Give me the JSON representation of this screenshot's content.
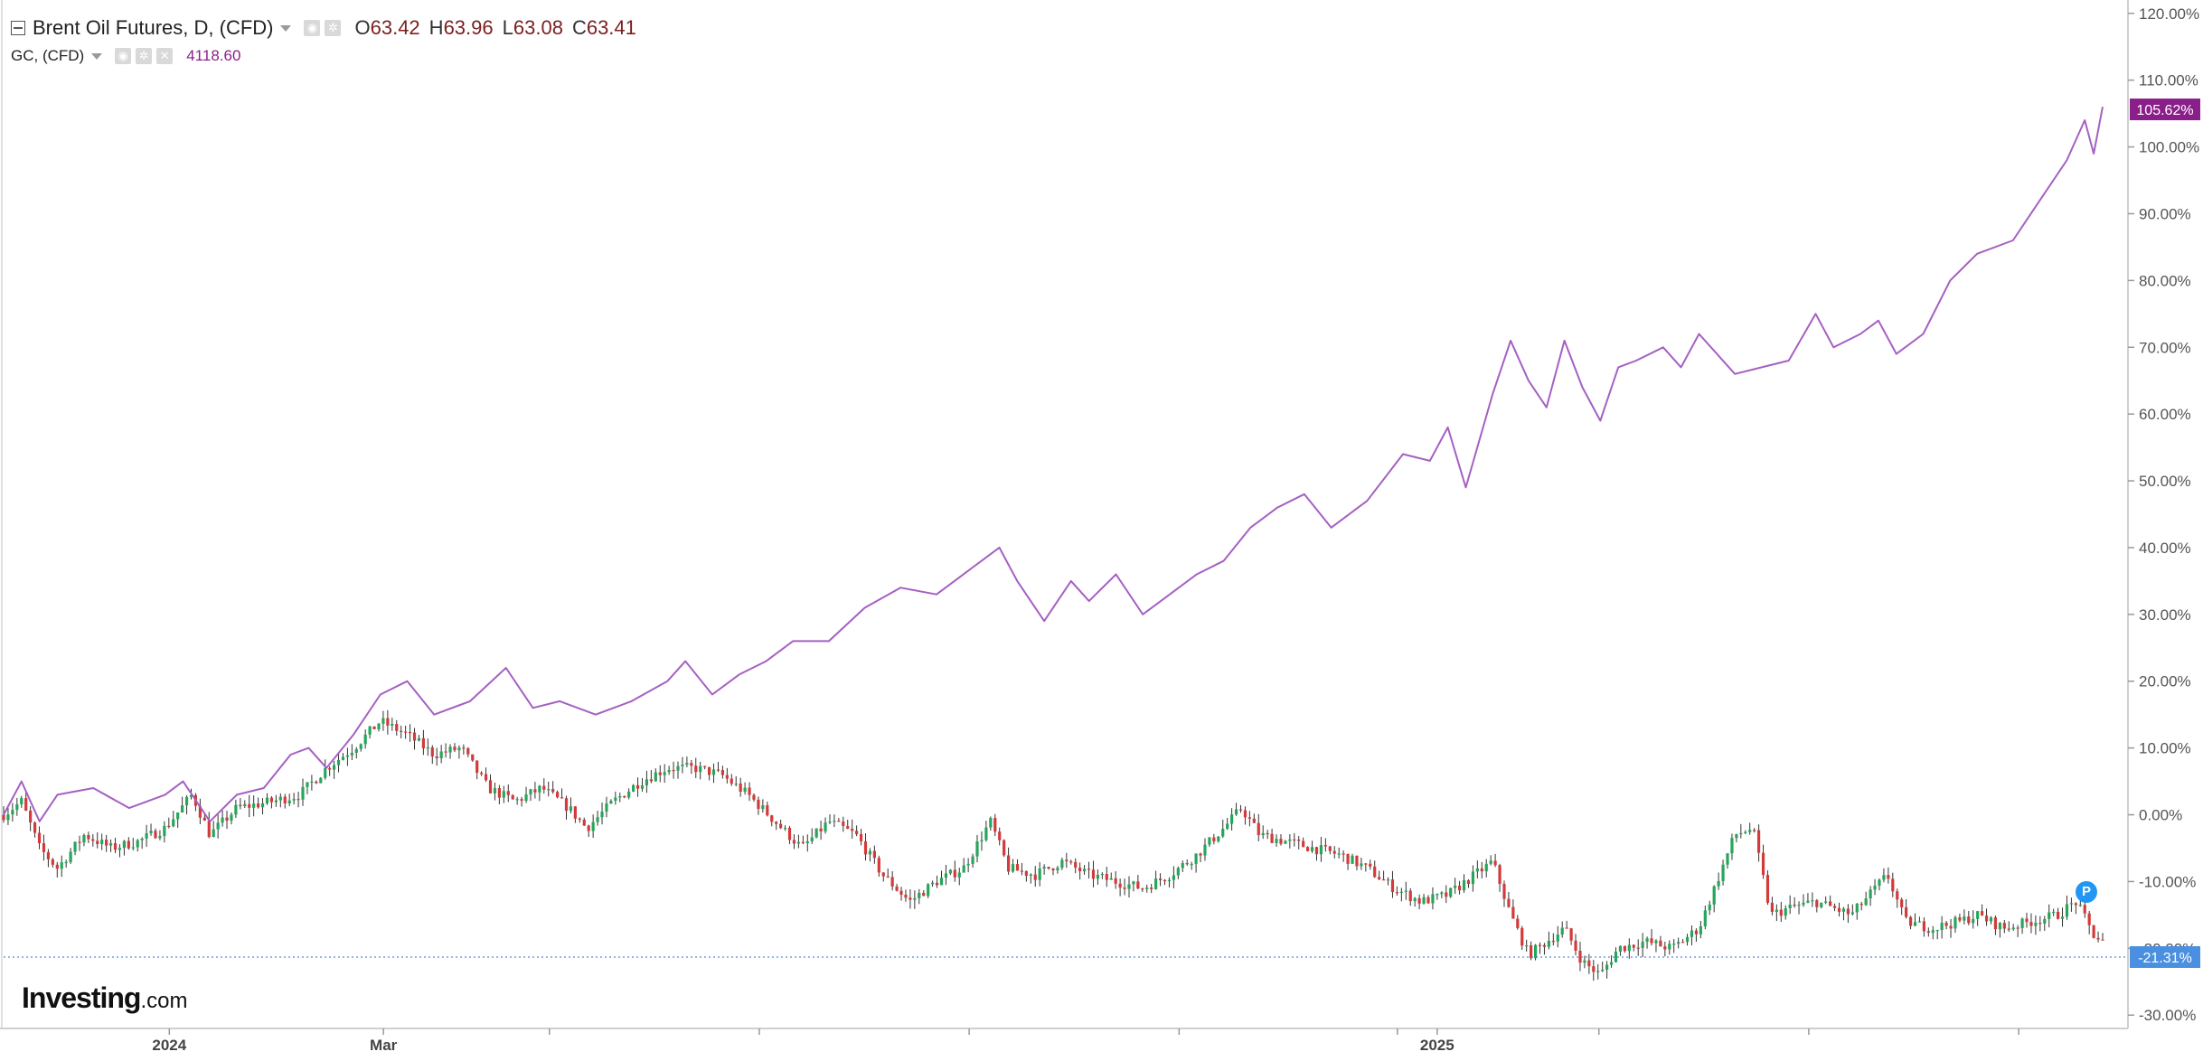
{
  "legend": {
    "main_label": "Brent Oil Futures, D, (CFD)",
    "ohlc": [
      {
        "key": "O",
        "value": "63.42"
      },
      {
        "key": "H",
        "value": "63.96"
      },
      {
        "key": "L",
        "value": "63.08"
      },
      {
        "key": "C",
        "value": "63.41"
      }
    ],
    "compare_label": "GC, (CFD)",
    "compare_value": "4118.60"
  },
  "brand": {
    "name": "Investing",
    "suffix": ".com"
  },
  "badge_letter": "P",
  "colors": {
    "compare_line": "#a560c2",
    "up_candle": "#26a65b",
    "down_candle": "#d43a3a",
    "compare_tag": "#8a1f8a",
    "last_tag": "#4a8fe0",
    "axis_text": "#555555",
    "grid": "#e6e6e6"
  },
  "chart_data": {
    "type": "line",
    "y_axis": {
      "unit": "%",
      "min": -32,
      "max": 122,
      "ticks": [
        "120.00%",
        "110.00%",
        "100.00%",
        "90.00%",
        "80.00%",
        "70.00%",
        "60.00%",
        "50.00%",
        "40.00%",
        "30.00%",
        "20.00%",
        "10.00%",
        "0.00%",
        "-10.00%",
        "-20.00%",
        "-30.00%"
      ],
      "tick_values": [
        120,
        110,
        100,
        90,
        80,
        70,
        60,
        50,
        40,
        30,
        20,
        10,
        0,
        -10,
        -20,
        -30
      ]
    },
    "x_axis": {
      "labels": [
        {
          "text": "2024",
          "t": 0.06
        },
        {
          "text": "Mar",
          "t": 0.162
        },
        {
          "text": "2025",
          "t": 0.664
        }
      ],
      "tick_marks": [
        0.26,
        0.36,
        0.46,
        0.56,
        0.664,
        0.76,
        0.86,
        0.96
      ]
    },
    "series": [
      {
        "name": "GC, (CFD)",
        "style": "line",
        "points": [
          [
            0.0,
            0
          ],
          [
            0.01,
            5
          ],
          [
            0.02,
            -1
          ],
          [
            0.03,
            3
          ],
          [
            0.05,
            4
          ],
          [
            0.07,
            1
          ],
          [
            0.09,
            3
          ],
          [
            0.1,
            5
          ],
          [
            0.115,
            -1
          ],
          [
            0.13,
            3
          ],
          [
            0.145,
            4
          ],
          [
            0.16,
            9
          ],
          [
            0.17,
            10
          ],
          [
            0.18,
            7
          ],
          [
            0.195,
            12
          ],
          [
            0.21,
            18
          ],
          [
            0.225,
            20
          ],
          [
            0.24,
            15
          ],
          [
            0.26,
            17
          ],
          [
            0.28,
            22
          ],
          [
            0.295,
            16
          ],
          [
            0.31,
            17
          ],
          [
            0.33,
            15
          ],
          [
            0.35,
            17
          ],
          [
            0.37,
            20
          ],
          [
            0.38,
            23
          ],
          [
            0.395,
            18
          ],
          [
            0.41,
            21
          ],
          [
            0.425,
            23
          ],
          [
            0.44,
            26
          ],
          [
            0.46,
            26
          ],
          [
            0.48,
            31
          ],
          [
            0.5,
            34
          ],
          [
            0.52,
            33
          ],
          [
            0.54,
            37
          ],
          [
            0.555,
            40
          ],
          [
            0.565,
            35
          ],
          [
            0.58,
            29
          ],
          [
            0.595,
            35
          ],
          [
            0.605,
            32
          ],
          [
            0.62,
            36
          ],
          [
            0.635,
            30
          ],
          [
            0.65,
            33
          ],
          [
            0.665,
            36
          ],
          [
            0.68,
            38
          ],
          [
            0.695,
            43
          ],
          [
            0.71,
            46
          ],
          [
            0.725,
            48
          ],
          [
            0.74,
            43
          ],
          [
            0.76,
            47
          ],
          [
            0.78,
            54
          ],
          [
            0.795,
            53
          ],
          [
            0.805,
            58
          ],
          [
            0.815,
            49
          ],
          [
            0.83,
            63
          ],
          [
            0.84,
            71
          ],
          [
            0.85,
            65
          ],
          [
            0.86,
            61
          ],
          [
            0.87,
            71
          ],
          [
            0.88,
            64
          ],
          [
            0.89,
            59
          ],
          [
            0.9,
            67
          ],
          [
            0.91,
            68
          ],
          [
            0.925,
            70
          ],
          [
            0.935,
            67
          ],
          [
            0.945,
            72
          ],
          [
            0.955,
            69
          ],
          [
            0.965,
            66
          ],
          [
            0.98,
            67
          ],
          [
            0.995,
            68
          ],
          [
            1.01,
            75
          ],
          [
            1.02,
            70
          ],
          [
            1.035,
            72
          ],
          [
            1.045,
            74
          ],
          [
            1.055,
            69
          ],
          [
            1.07,
            72
          ],
          [
            1.085,
            80
          ],
          [
            1.1,
            84
          ],
          [
            1.12,
            86
          ],
          [
            1.135,
            92
          ],
          [
            1.15,
            98
          ],
          [
            1.16,
            104
          ],
          [
            1.165,
            99
          ],
          [
            1.17,
            106
          ]
        ],
        "last_value_label": "105.62%",
        "last_value": 105.62
      },
      {
        "name": "Brent Oil Futures, D, (CFD)",
        "style": "candlestick",
        "points": [
          [
            0.0,
            0
          ],
          [
            0.01,
            2
          ],
          [
            0.02,
            -5
          ],
          [
            0.03,
            -8
          ],
          [
            0.045,
            -3
          ],
          [
            0.06,
            -5
          ],
          [
            0.075,
            -4
          ],
          [
            0.09,
            -2
          ],
          [
            0.105,
            3
          ],
          [
            0.115,
            -3
          ],
          [
            0.13,
            1
          ],
          [
            0.15,
            2
          ],
          [
            0.165,
            3
          ],
          [
            0.18,
            7
          ],
          [
            0.195,
            10
          ],
          [
            0.21,
            14
          ],
          [
            0.225,
            12
          ],
          [
            0.24,
            9
          ],
          [
            0.255,
            10
          ],
          [
            0.27,
            4
          ],
          [
            0.285,
            2
          ],
          [
            0.3,
            4
          ],
          [
            0.315,
            1
          ],
          [
            0.325,
            -2
          ],
          [
            0.34,
            2
          ],
          [
            0.355,
            5
          ],
          [
            0.37,
            7
          ],
          [
            0.385,
            7
          ],
          [
            0.4,
            6
          ],
          [
            0.415,
            3
          ],
          [
            0.43,
            -1
          ],
          [
            0.445,
            -5
          ],
          [
            0.46,
            -1
          ],
          [
            0.475,
            -3
          ],
          [
            0.49,
            -9
          ],
          [
            0.505,
            -13
          ],
          [
            0.52,
            -10
          ],
          [
            0.535,
            -8
          ],
          [
            0.55,
            -1
          ],
          [
            0.56,
            -8
          ],
          [
            0.575,
            -9
          ],
          [
            0.59,
            -7
          ],
          [
            0.605,
            -9
          ],
          [
            0.62,
            -10
          ],
          [
            0.635,
            -11
          ],
          [
            0.65,
            -9
          ],
          [
            0.665,
            -6
          ],
          [
            0.68,
            -2
          ],
          [
            0.69,
            1
          ],
          [
            0.7,
            -3
          ],
          [
            0.715,
            -4
          ],
          [
            0.73,
            -5
          ],
          [
            0.745,
            -6
          ],
          [
            0.76,
            -8
          ],
          [
            0.775,
            -11
          ],
          [
            0.79,
            -13
          ],
          [
            0.805,
            -12
          ],
          [
            0.82,
            -9
          ],
          [
            0.83,
            -7
          ],
          [
            0.84,
            -15
          ],
          [
            0.85,
            -21
          ],
          [
            0.86,
            -19
          ],
          [
            0.87,
            -17
          ],
          [
            0.88,
            -22
          ],
          [
            0.89,
            -24
          ],
          [
            0.9,
            -20
          ],
          [
            0.915,
            -19
          ],
          [
            0.93,
            -20
          ],
          [
            0.945,
            -17
          ],
          [
            0.955,
            -10
          ],
          [
            0.965,
            -3
          ],
          [
            0.975,
            -2
          ],
          [
            0.985,
            -15
          ],
          [
            0.995,
            -14
          ],
          [
            1.01,
            -13
          ],
          [
            1.02,
            -14
          ],
          [
            1.03,
            -15
          ],
          [
            1.04,
            -12
          ],
          [
            1.05,
            -9
          ],
          [
            1.06,
            -16
          ],
          [
            1.075,
            -17
          ],
          [
            1.09,
            -16
          ],
          [
            1.1,
            -15
          ],
          [
            1.115,
            -17
          ],
          [
            1.13,
            -16
          ],
          [
            1.145,
            -15
          ],
          [
            1.155,
            -13
          ],
          [
            1.165,
            -18
          ],
          [
            1.175,
            -20
          ],
          [
            1.18,
            -22
          ]
        ],
        "last_value_label": "-21.31%",
        "last_value": -21.31
      }
    ],
    "grid": false,
    "legend_position": "top-left"
  }
}
